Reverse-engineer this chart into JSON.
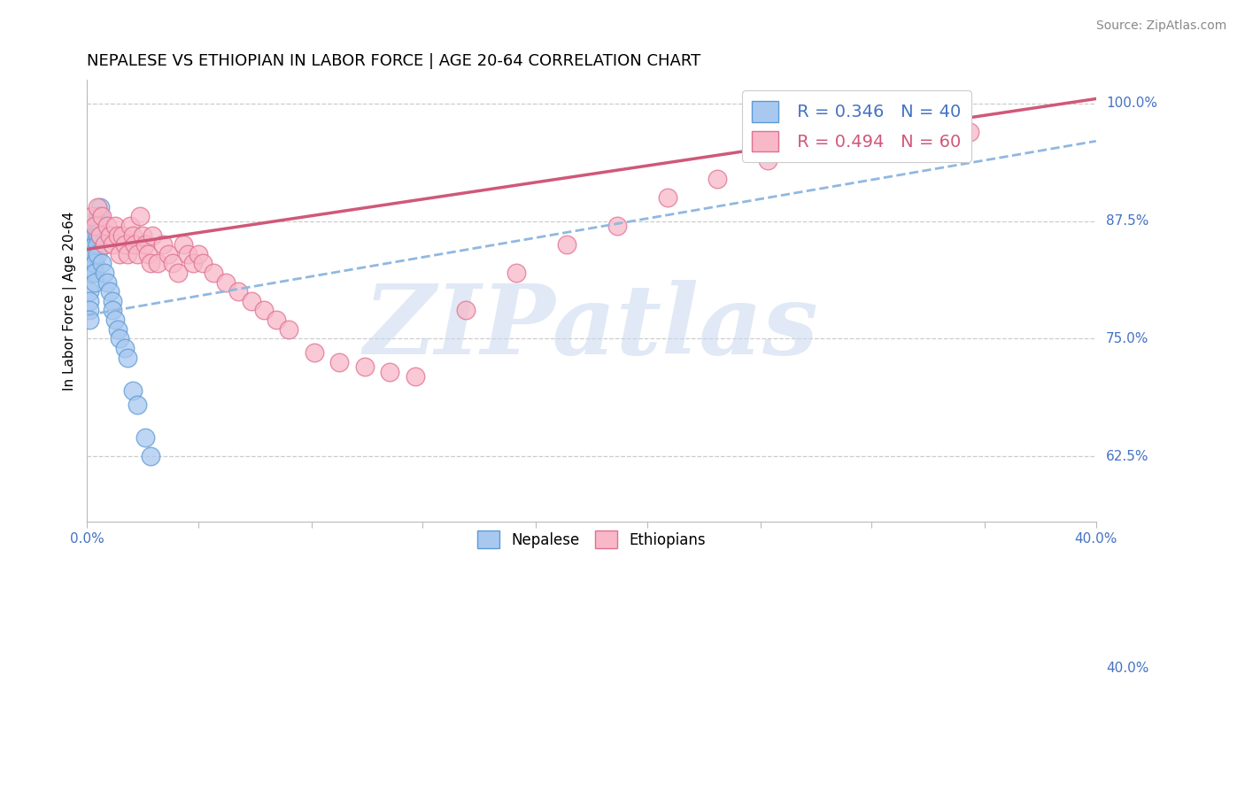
{
  "title": "NEPALESE VS ETHIOPIAN IN LABOR FORCE | AGE 20-64 CORRELATION CHART",
  "source_text": "Source: ZipAtlas.com",
  "ylabel": "In Labor Force | Age 20-64",
  "legend_label1": "Nepalese",
  "legend_label2": "Ethiopians",
  "R1": 0.346,
  "N1": 40,
  "R2": 0.494,
  "N2": 60,
  "color_blue_fill": "#A8C8F0",
  "color_blue_edge": "#5B9BD5",
  "color_blue_line": "#3C6EAB",
  "color_pink_fill": "#F8B8C8",
  "color_pink_edge": "#E07090",
  "color_pink_line": "#D05878",
  "color_blue_dashed": "#90B8E0",
  "color_axis_text": "#4472C4",
  "xlim": [
    0.0,
    0.4
  ],
  "ylim": [
    0.555,
    1.025
  ],
  "ytick_values": [
    1.0,
    0.875,
    0.75,
    0.625
  ],
  "ytick_labels": [
    "100.0%",
    "87.5%",
    "75.0%",
    "62.5%"
  ],
  "yright_extra_value": 0.4,
  "yright_extra_label": "40.0%",
  "xtick_values": [
    0.0,
    0.044,
    0.089,
    0.133,
    0.178,
    0.222,
    0.267,
    0.311,
    0.356,
    0.4
  ],
  "xtick_labels": [
    "0.0%",
    "",
    "",
    "",
    "",
    "",
    "",
    "",
    "",
    "40.0%"
  ],
  "grid_color": "#CCCCCC",
  "watermark_text": "ZIPatlas",
  "background_color": "#FFFFFF",
  "title_fontsize": 13,
  "label_fontsize": 11,
  "tick_fontsize": 11,
  "source_fontsize": 10,
  "legend_fontsize": 14,
  "nepalese_x": [
    0.001,
    0.001,
    0.001,
    0.001,
    0.002,
    0.002,
    0.002,
    0.002,
    0.002,
    0.003,
    0.003,
    0.003,
    0.003,
    0.003,
    0.003,
    0.003,
    0.004,
    0.004,
    0.004,
    0.004,
    0.004,
    0.005,
    0.005,
    0.005,
    0.005,
    0.006,
    0.007,
    0.008,
    0.009,
    0.01,
    0.01,
    0.011,
    0.012,
    0.013,
    0.015,
    0.016,
    0.018,
    0.02,
    0.023,
    0.025
  ],
  "nepalese_y": [
    0.8,
    0.79,
    0.78,
    0.77,
    0.86,
    0.85,
    0.84,
    0.83,
    0.82,
    0.87,
    0.86,
    0.85,
    0.84,
    0.83,
    0.82,
    0.81,
    0.88,
    0.87,
    0.86,
    0.85,
    0.84,
    0.89,
    0.88,
    0.87,
    0.86,
    0.83,
    0.82,
    0.81,
    0.8,
    0.79,
    0.78,
    0.77,
    0.76,
    0.75,
    0.74,
    0.73,
    0.695,
    0.68,
    0.645,
    0.625
  ],
  "ethiopian_x": [
    0.002,
    0.003,
    0.004,
    0.005,
    0.006,
    0.007,
    0.008,
    0.009,
    0.01,
    0.011,
    0.012,
    0.013,
    0.014,
    0.015,
    0.016,
    0.017,
    0.018,
    0.019,
    0.02,
    0.021,
    0.022,
    0.023,
    0.024,
    0.025,
    0.026,
    0.028,
    0.03,
    0.032,
    0.034,
    0.036,
    0.038,
    0.04,
    0.042,
    0.044,
    0.046,
    0.05,
    0.055,
    0.06,
    0.065,
    0.07,
    0.075,
    0.08,
    0.09,
    0.1,
    0.11,
    0.12,
    0.13,
    0.15,
    0.17,
    0.19,
    0.21,
    0.23,
    0.25,
    0.27,
    0.29,
    0.31,
    0.32,
    0.33,
    0.34,
    0.35
  ],
  "ethiopian_y": [
    0.88,
    0.87,
    0.89,
    0.86,
    0.88,
    0.85,
    0.87,
    0.86,
    0.85,
    0.87,
    0.86,
    0.84,
    0.86,
    0.85,
    0.84,
    0.87,
    0.86,
    0.85,
    0.84,
    0.88,
    0.86,
    0.85,
    0.84,
    0.83,
    0.86,
    0.83,
    0.85,
    0.84,
    0.83,
    0.82,
    0.85,
    0.84,
    0.83,
    0.84,
    0.83,
    0.82,
    0.81,
    0.8,
    0.79,
    0.78,
    0.77,
    0.76,
    0.735,
    0.725,
    0.72,
    0.715,
    0.71,
    0.78,
    0.82,
    0.85,
    0.87,
    0.9,
    0.92,
    0.94,
    0.96,
    0.975,
    0.98,
    0.975,
    0.972,
    0.97
  ],
  "blue_trend_x0": 0.0,
  "blue_trend_y0": 0.775,
  "blue_trend_x1": 0.4,
  "blue_trend_y1": 0.96,
  "pink_trend_x0": 0.0,
  "pink_trend_y0": 0.845,
  "pink_trend_x1": 0.4,
  "pink_trend_y1": 1.005
}
